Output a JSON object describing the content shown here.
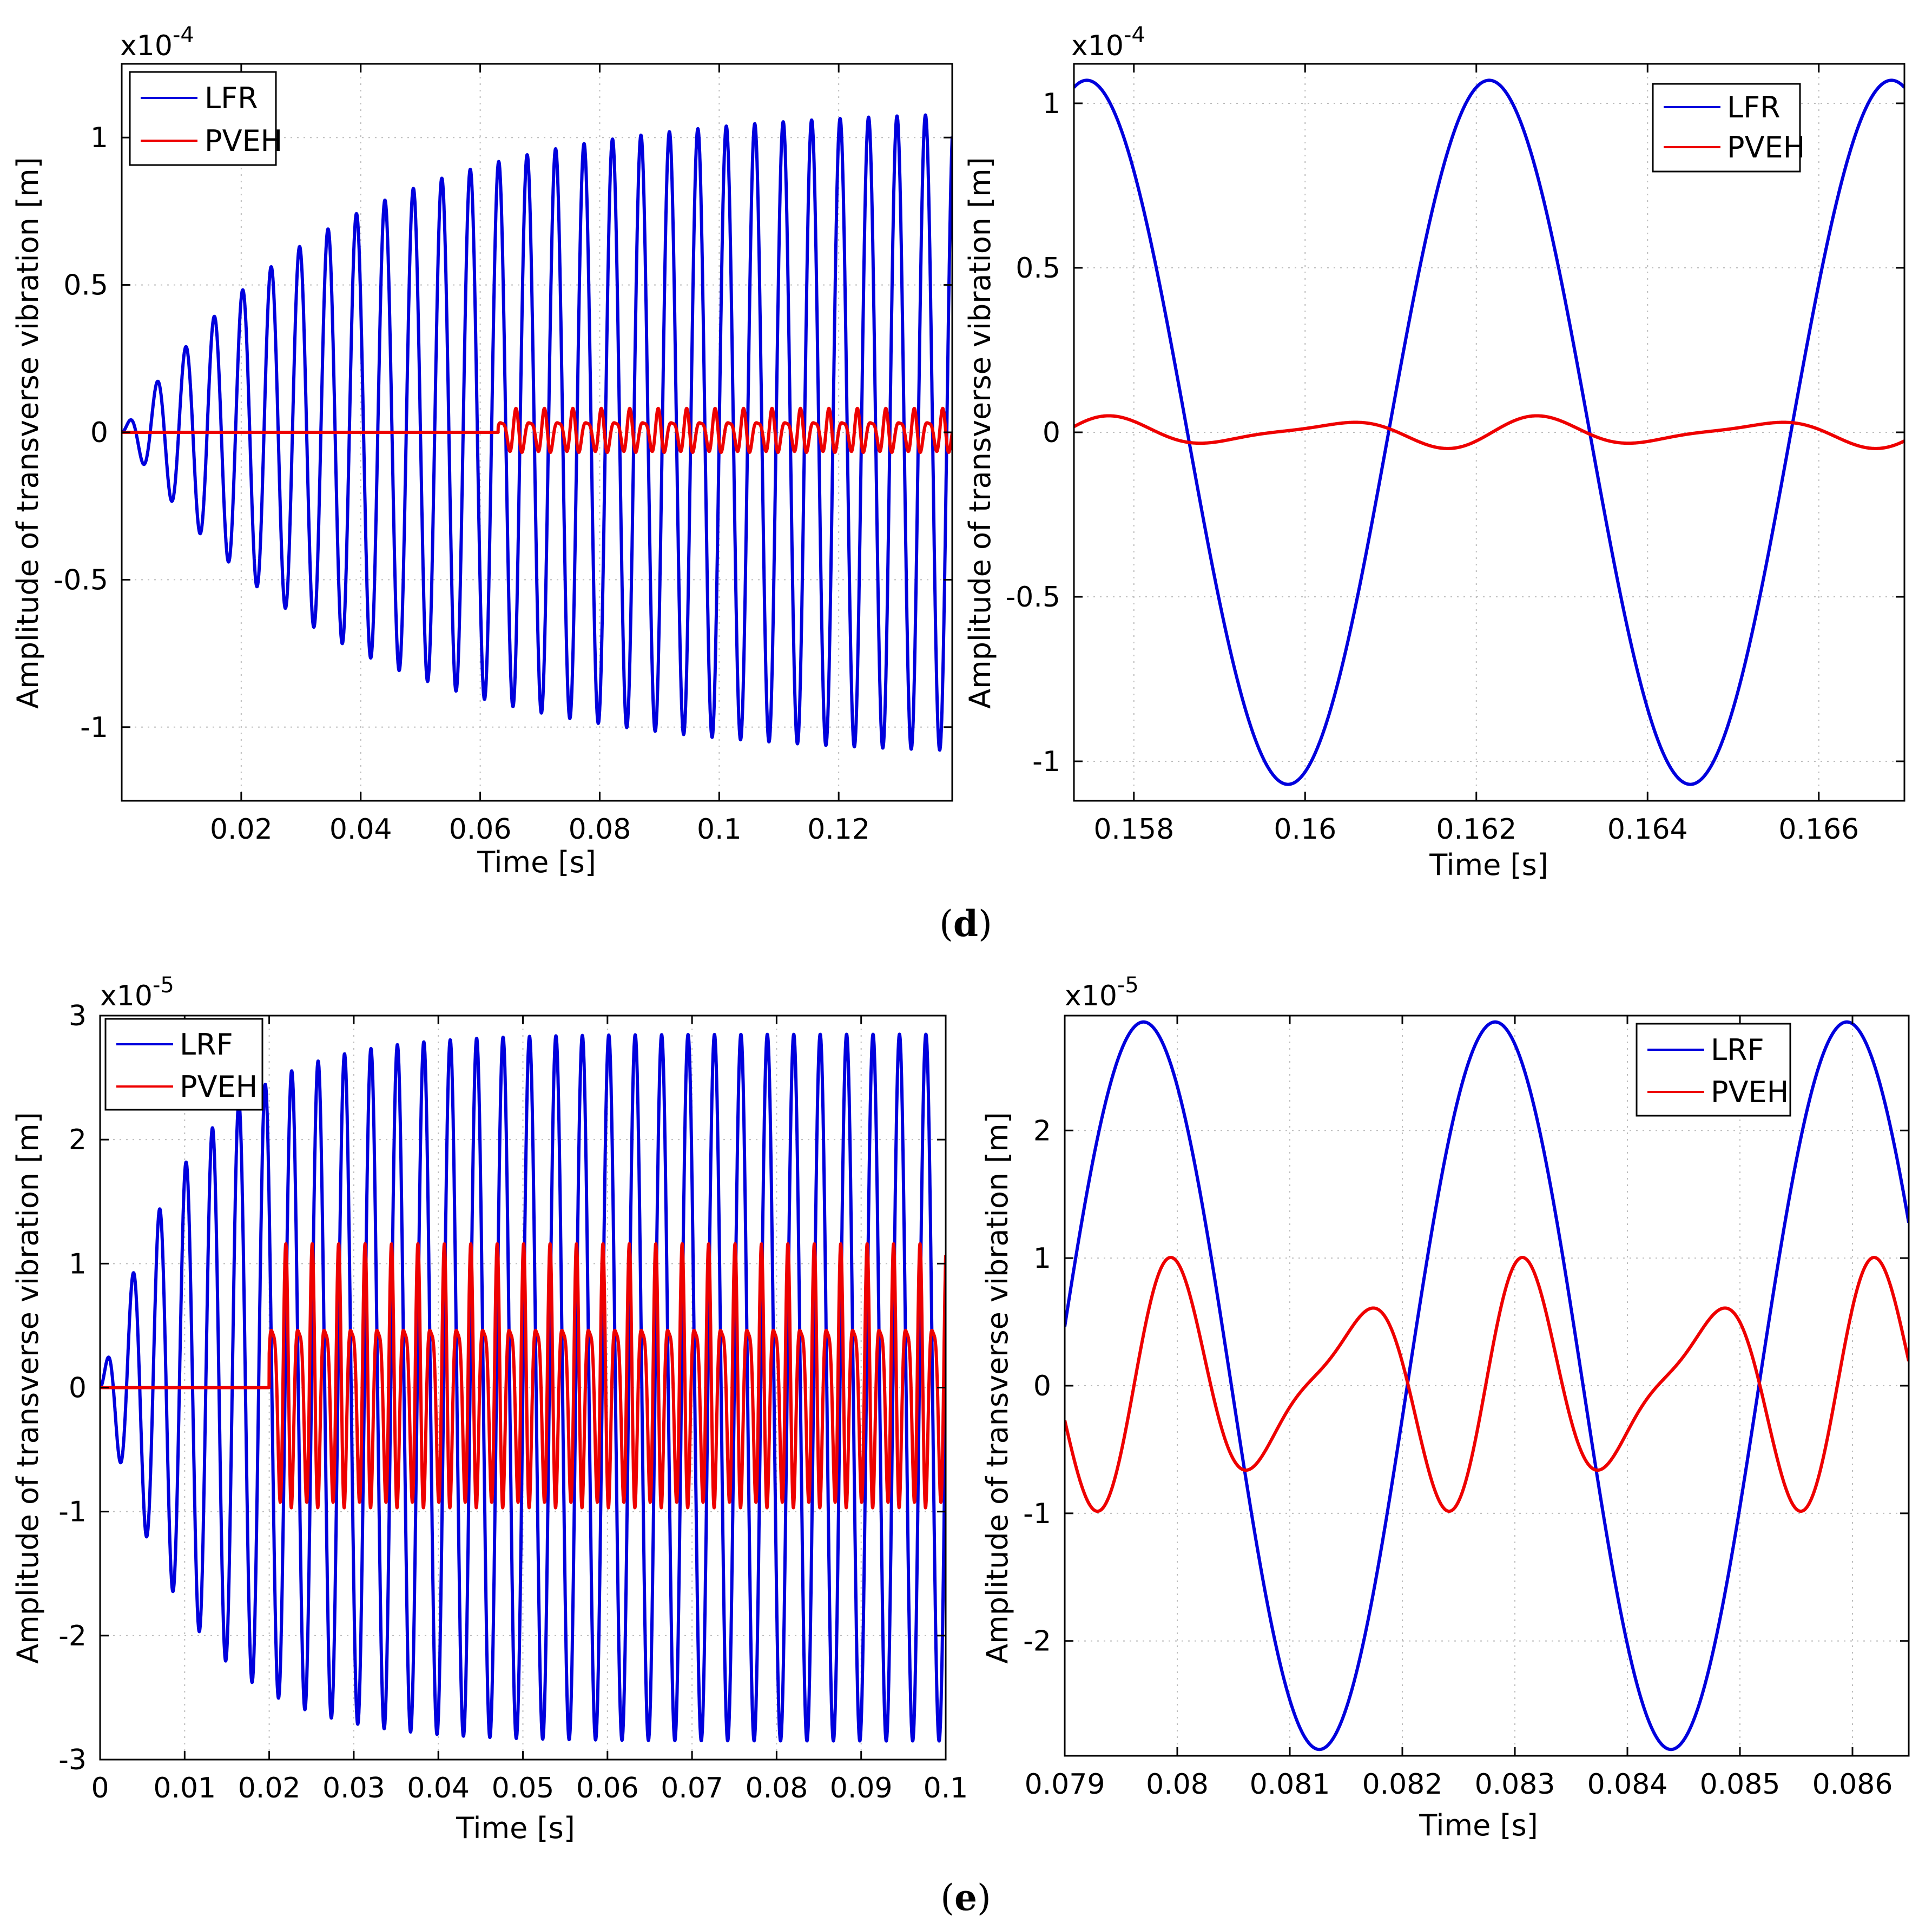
{
  "captions": [
    {
      "open": "(",
      "letter": "d",
      "close": ")"
    },
    {
      "open": "(",
      "letter": "e",
      "close": ")"
    }
  ],
  "chart_data": [
    {
      "type": "line",
      "panel": "d-left",
      "title": "",
      "xlabel": "Time [s]",
      "ylabel": "Amplitude of transverse vibration [m]",
      "y_multiplier_base": "x10",
      "y_multiplier_exp": "-4",
      "xlim": [
        0.0,
        0.139
      ],
      "ylim": [
        -1.25,
        1.25
      ],
      "xticks": [
        0.02,
        0.04,
        0.06,
        0.08,
        0.1,
        0.12
      ],
      "xtick_labels": [
        "0.02",
        "0.04",
        "0.06",
        "0.08",
        "0.1",
        "0.12"
      ],
      "yticks": [
        -1,
        -0.5,
        0,
        0.5,
        1
      ],
      "ytick_labels": [
        "-1",
        "-0.5",
        "0",
        "0.5",
        "1"
      ],
      "grid": true,
      "legend_position": "top-left",
      "series": [
        {
          "name": "LFR",
          "color": "#0000dd",
          "model": "growing_sine",
          "frequency_hz": 210,
          "amplitude_final": 1.1,
          "time_constant": 0.035,
          "phase": 0,
          "start": 0.0
        },
        {
          "name": "PVEH",
          "color": "#ee0000",
          "model": "beating",
          "frequency_hz": 420,
          "frequency2_hz": 630,
          "amplitude": 0.07,
          "start": 0.063
        }
      ]
    },
    {
      "type": "line",
      "panel": "d-right",
      "title": "",
      "xlabel": "Time [s]",
      "ylabel": "Amplitude of transverse vibration [m]",
      "y_multiplier_base": "x10",
      "y_multiplier_exp": "-4",
      "xlim": [
        0.1573,
        0.167
      ],
      "ylim": [
        -1.12,
        1.12
      ],
      "xticks": [
        0.158,
        0.16,
        0.162,
        0.164,
        0.166
      ],
      "xtick_labels": [
        "0.158",
        "0.16",
        "0.162",
        "0.164",
        "0.166"
      ],
      "yticks": [
        -1,
        -0.5,
        0,
        0.5,
        1
      ],
      "ytick_labels": [
        "-1",
        "-0.5",
        "0",
        "0.5",
        "1"
      ],
      "grid": true,
      "legend_position": "top-right",
      "series": [
        {
          "name": "LFR",
          "color": "#0000dd",
          "model": "sine",
          "frequency_hz": 212.8,
          "amplitude": 1.07,
          "peak_at": 0.16215
        },
        {
          "name": "PVEH",
          "color": "#ee0000",
          "model": "beating",
          "frequency_hz": 400,
          "frequency2_hz": 600,
          "amplitude": 0.045,
          "peak_at": 0.1578
        }
      ]
    },
    {
      "type": "line",
      "panel": "e-left",
      "title": "",
      "xlabel": "Time [s]",
      "ylabel": "Amplitude of transverse vibration [m]",
      "y_multiplier_base": "x10",
      "y_multiplier_exp": "-5",
      "xlim": [
        0.0,
        0.1
      ],
      "ylim": [
        -3.0,
        3.0
      ],
      "xticks": [
        0,
        0.01,
        0.02,
        0.03,
        0.04,
        0.05,
        0.06,
        0.07,
        0.08,
        0.09,
        0.1
      ],
      "xtick_labels": [
        "0",
        "0.01",
        "0.02",
        "0.03",
        "0.04",
        "0.05",
        "0.06",
        "0.07",
        "0.08",
        "0.09",
        "0.1"
      ],
      "yticks": [
        -3,
        -2,
        -1,
        0,
        1,
        2,
        3
      ],
      "ytick_labels": [
        "-3",
        "-2",
        "-1",
        "0",
        "1",
        "2",
        "3"
      ],
      "grid": true,
      "legend_position": "top-left",
      "series": [
        {
          "name": "LRF",
          "color": "#0000dd",
          "model": "growing_sine",
          "frequency_hz": 320,
          "amplitude_final": 2.85,
          "time_constant": 0.01,
          "phase": 0,
          "start": 0.0
        },
        {
          "name": "PVEH",
          "color": "#ee0000",
          "model": "beating",
          "frequency_hz": 640,
          "frequency2_hz": 960,
          "amplitude": 1.0,
          "start": 0.02
        }
      ]
    },
    {
      "type": "line",
      "panel": "e-right",
      "title": "",
      "xlabel": "Time [s]",
      "ylabel": "Amplitude of transverse vibration [m]",
      "y_multiplier_base": "x10",
      "y_multiplier_exp": "-5",
      "xlim": [
        0.079,
        0.0865
      ],
      "ylim": [
        -2.9,
        2.9
      ],
      "xticks": [
        0.079,
        0.08,
        0.081,
        0.082,
        0.083,
        0.084,
        0.085,
        0.086
      ],
      "xtick_labels": [
        "0.079",
        "0.08",
        "0.081",
        "0.082",
        "0.083",
        "0.084",
        "0.085",
        "0.086"
      ],
      "yticks": [
        -2,
        -1,
        0,
        1,
        2
      ],
      "ytick_labels": [
        "-2",
        "-1",
        "0",
        "1",
        "2"
      ],
      "grid": true,
      "legend_position": "top-right",
      "series": [
        {
          "name": "LRF",
          "color": "#0000dd",
          "model": "sine",
          "frequency_hz": 320,
          "amplitude": 2.85,
          "peak_at": 0.0797
        },
        {
          "name": "PVEH",
          "color": "#ee0000",
          "model": "beating",
          "frequency_hz": 640,
          "frequency2_hz": 960,
          "amplitude": 0.9,
          "peak_at": 0.08
        }
      ]
    }
  ]
}
